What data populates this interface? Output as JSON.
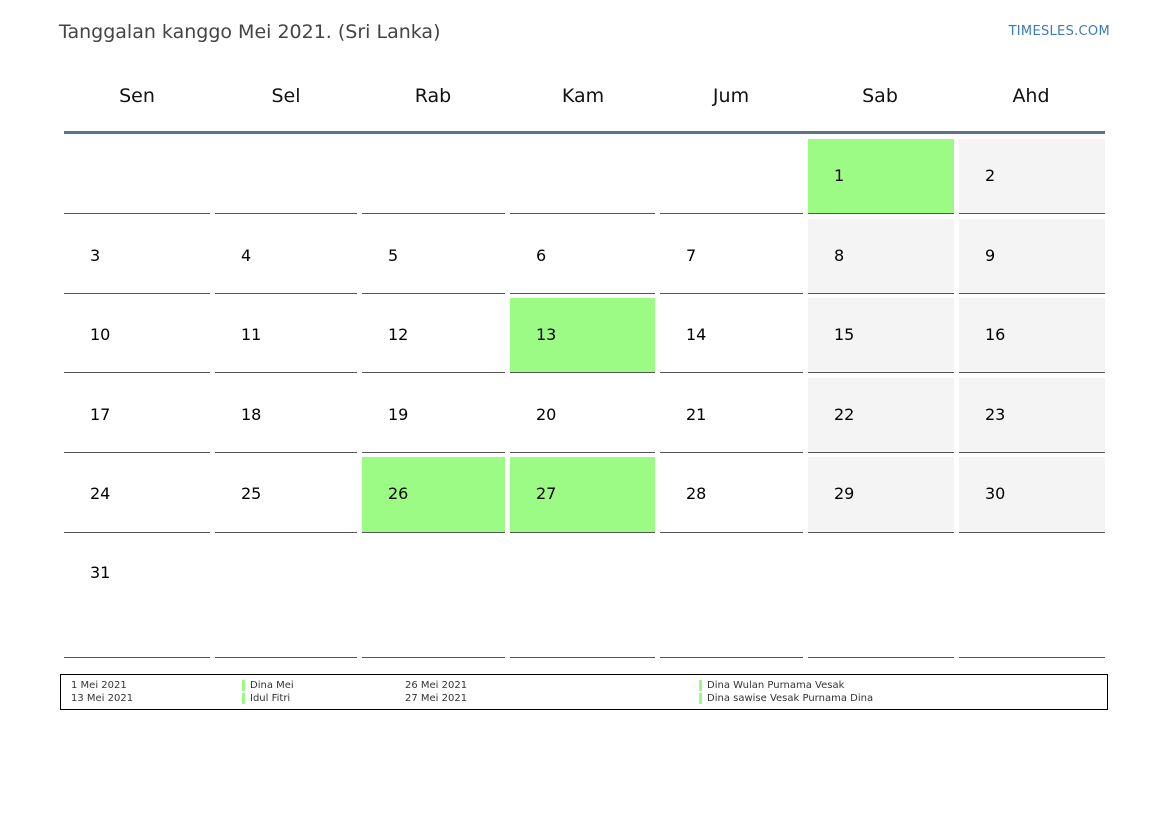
{
  "header": {
    "title": "Tanggalan kanggo Mei 2021. (Sri Lanka)",
    "brand": "TIMESLES.COM"
  },
  "colors": {
    "holiday": "#9bfb84",
    "weekend": "#f4f4f4",
    "header_line": "#5a7390"
  },
  "weekdays": [
    "Sen",
    "Sel",
    "Rab",
    "Kam",
    "Jum",
    "Sab",
    "Ahd"
  ],
  "weeks": [
    [
      null,
      null,
      null,
      null,
      null,
      {
        "day": "1",
        "type": "holiday"
      },
      {
        "day": "2",
        "type": "weekend"
      }
    ],
    [
      {
        "day": "3"
      },
      {
        "day": "4"
      },
      {
        "day": "5"
      },
      {
        "day": "6"
      },
      {
        "day": "7"
      },
      {
        "day": "8",
        "type": "weekend"
      },
      {
        "day": "9",
        "type": "weekend"
      }
    ],
    [
      {
        "day": "10"
      },
      {
        "day": "11"
      },
      {
        "day": "12"
      },
      {
        "day": "13",
        "type": "holiday"
      },
      {
        "day": "14"
      },
      {
        "day": "15",
        "type": "weekend"
      },
      {
        "day": "16",
        "type": "weekend"
      }
    ],
    [
      {
        "day": "17"
      },
      {
        "day": "18"
      },
      {
        "day": "19"
      },
      {
        "day": "20"
      },
      {
        "day": "21"
      },
      {
        "day": "22",
        "type": "weekend"
      },
      {
        "day": "23",
        "type": "weekend"
      }
    ],
    [
      {
        "day": "24"
      },
      {
        "day": "25"
      },
      {
        "day": "26",
        "type": "holiday"
      },
      {
        "day": "27",
        "type": "holiday"
      },
      {
        "day": "28"
      },
      {
        "day": "29",
        "type": "weekend"
      },
      {
        "day": "30",
        "type": "weekend"
      }
    ],
    [
      {
        "day": "31"
      },
      null,
      null,
      null,
      null,
      null,
      null
    ]
  ],
  "legend": [
    {
      "date": "1 Mei 2021",
      "name": "Dina Mei"
    },
    {
      "date": "13 Mei 2021",
      "name": "Idul Fitri"
    },
    {
      "date": "26 Mei 2021",
      "name": "Dina Wulan Purnama Vesak"
    },
    {
      "date": "27 Mei 2021",
      "name": "Dina sawise Vesak Purnama Dina"
    }
  ]
}
